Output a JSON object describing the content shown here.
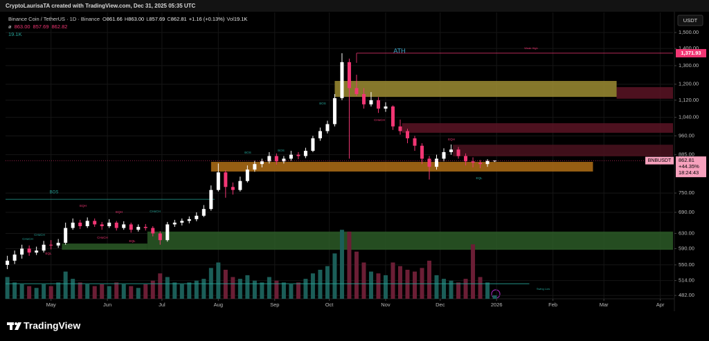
{
  "header": {
    "credit": "CryptoLaurisaTA created with TradingView.com, Dec 31, 2025 05:35 UTC"
  },
  "chart_data": {
    "type": "candlestick",
    "title": "Binance Coin / TetherUS · 1D · Binance",
    "ohlc": [
      [
        "O",
        "861.66"
      ],
      [
        "H",
        "863.00"
      ],
      [
        "L",
        "857.69"
      ],
      [
        "C",
        "862.81"
      ]
    ],
    "change": "+1.16 (+0.13%)",
    "volume_name": "Vol",
    "volume_text": "19.1K",
    "indicator": [
      "ø",
      "863.00",
      "857.69",
      "862.82"
    ],
    "indicator2": "19.1K",
    "currency": "USDT",
    "x": [
      97,
      101,
      105,
      109,
      113,
      117,
      121,
      125,
      129,
      133,
      137,
      141,
      145,
      149,
      153,
      157,
      161,
      165,
      169,
      173,
      177,
      181,
      185,
      189,
      193,
      197,
      201,
      205,
      209,
      213,
      217,
      221,
      225,
      229,
      233,
      237,
      241,
      245,
      249,
      253,
      257,
      261,
      265,
      269,
      273,
      277,
      281,
      285,
      289,
      293,
      297,
      301,
      305,
      309,
      313,
      317,
      321,
      325,
      329,
      333,
      337,
      341,
      345,
      349,
      353,
      357,
      361,
      365
    ],
    "open": [
      550,
      560,
      575,
      590,
      580,
      585,
      600,
      598,
      605,
      645,
      660,
      650,
      665,
      655,
      650,
      660,
      645,
      655,
      640,
      648,
      645,
      630,
      612,
      655,
      660,
      665,
      670,
      680,
      700,
      760,
      820,
      770,
      760,
      790,
      830,
      850,
      860,
      880,
      860,
      870,
      885,
      880,
      900,
      950,
      980,
      1010,
      1130,
      1320,
      1180,
      1150,
      1100,
      1120,
      1080,
      1090,
      1000,
      980,
      950,
      920,
      870,
      840,
      870,
      895,
      905,
      880,
      860,
      855,
      850,
      861.66
    ],
    "high": [
      572,
      585,
      600,
      598,
      595,
      610,
      612,
      615,
      660,
      672,
      668,
      675,
      672,
      662,
      670,
      665,
      664,
      660,
      655,
      656,
      650,
      636,
      662,
      668,
      672,
      678,
      690,
      712,
      775,
      852,
      828,
      785,
      805,
      845,
      862,
      870,
      895,
      890,
      880,
      900,
      895,
      912,
      960,
      995,
      1025,
      1150,
      1371.93,
      1340,
      1250,
      1180,
      1160,
      1135,
      1110,
      1095,
      1030,
      990,
      960,
      930,
      880,
      885,
      910,
      925,
      915,
      890,
      875,
      865,
      868,
      863
    ],
    "low": [
      540,
      552,
      565,
      572,
      574,
      580,
      588,
      592,
      600,
      640,
      642,
      645,
      648,
      640,
      645,
      638,
      640,
      632,
      635,
      638,
      622,
      600,
      608,
      648,
      652,
      658,
      664,
      676,
      695,
      755,
      735,
      745,
      755,
      785,
      822,
      838,
      852,
      848,
      852,
      862,
      868,
      872,
      895,
      940,
      970,
      1000,
      1120,
      870,
      1140,
      1080,
      1090,
      1060,
      1065,
      985,
      965,
      930,
      900,
      850,
      795,
      830,
      860,
      885,
      870,
      845,
      838,
      835,
      840,
      857.69
    ],
    "close": [
      560,
      575,
      590,
      580,
      585,
      600,
      598,
      605,
      645,
      660,
      650,
      665,
      655,
      650,
      660,
      645,
      655,
      640,
      648,
      645,
      630,
      612,
      655,
      660,
      665,
      670,
      680,
      700,
      760,
      820,
      770,
      760,
      790,
      830,
      850,
      860,
      880,
      860,
      870,
      885,
      880,
      900,
      950,
      980,
      1010,
      1130,
      1320,
      1180,
      1150,
      1100,
      1120,
      1080,
      1090,
      1000,
      980,
      950,
      920,
      870,
      840,
      870,
      895,
      905,
      880,
      860,
      855,
      850,
      861.66,
      862.81
    ],
    "volume": [
      120000,
      90000,
      80000,
      70000,
      60000,
      80000,
      70000,
      90000,
      150000,
      110000,
      90000,
      80000,
      70000,
      80000,
      70000,
      90000,
      80000,
      70000,
      60000,
      80000,
      100000,
      140000,
      120000,
      90000,
      80000,
      90000,
      100000,
      110000,
      170000,
      200000,
      160000,
      120000,
      110000,
      130000,
      100000,
      90000,
      120000,
      100000,
      90000,
      80000,
      90000,
      110000,
      140000,
      160000,
      180000,
      250000,
      380000,
      370000,
      260000,
      200000,
      150000,
      140000,
      130000,
      200000,
      180000,
      160000,
      150000,
      170000,
      210000,
      130000,
      110000,
      100000,
      90000,
      110000,
      300000,
      120000,
      90000,
      19100
    ],
    "up_color": "#ffffff",
    "down_color": "#f23674",
    "volume_up_color": "#1b5e58",
    "volume_down_color": "#6b1e35",
    "log_scale": true,
    "grid": true,
    "xlim": [
      96,
      463
    ],
    "xticks": [
      {
        "value": 121,
        "label": "May"
      },
      {
        "value": 152,
        "label": "Jun"
      },
      {
        "value": 182,
        "label": "Jul"
      },
      {
        "value": 213,
        "label": "Aug"
      },
      {
        "value": 244,
        "label": "Sep"
      },
      {
        "value": 274,
        "label": "Oct"
      },
      {
        "value": 305,
        "label": "Nov"
      },
      {
        "value": 335,
        "label": "Dec"
      },
      {
        "value": 366,
        "label": "2026"
      },
      {
        "value": 397,
        "label": "Feb"
      },
      {
        "value": 425,
        "label": "Mar"
      },
      {
        "value": 456,
        "label": "Apr"
      }
    ],
    "ylim": [
      475,
      1541
    ],
    "yticks": [
      {
        "value": 1500,
        "label": "1,500.00"
      },
      {
        "value": 1400,
        "label": "1,400.00"
      },
      {
        "value": 1300,
        "label": "1,300.00"
      },
      {
        "value": 1200,
        "label": "1,200.00"
      },
      {
        "value": 1120,
        "label": "1,120.00"
      },
      {
        "value": 1040,
        "label": "1,040.00"
      },
      {
        "value": 960,
        "label": "960.00"
      },
      {
        "value": 885,
        "label": "885.00"
      },
      {
        "value": 750,
        "label": "750.00"
      },
      {
        "value": 690,
        "label": "690.00"
      },
      {
        "value": 630,
        "label": "630.00"
      },
      {
        "value": 590,
        "label": "590.00"
      },
      {
        "value": 550,
        "label": "550.00"
      },
      {
        "value": 514,
        "label": "514.00"
      },
      {
        "value": 482,
        "label": "482.00"
      }
    ],
    "volume_ylim": [
      0,
      400000
    ],
    "price_tag": {
      "symbol": "BNBUSDT",
      "price": "862.81",
      "change": "+44.35%",
      "countdown": "18:24:43"
    },
    "ath": {
      "text": "ATH",
      "value": 1371.93,
      "label": "1,371.93",
      "from": 289,
      "note": "Weak High",
      "color": "#f23674"
    },
    "levels": [
      {
        "name": "BOS",
        "value": 730,
        "from": 96,
        "to": 211,
        "color": "#26a69a"
      },
      {
        "name": "Swing Low",
        "value": 507,
        "from": 96,
        "to": 384,
        "color": "#26a69a"
      }
    ],
    "zones": [
      {
        "low": 1127,
        "high": 1185,
        "from": 432,
        "to": 463,
        "color": "#5a1424"
      },
      {
        "low": 1136,
        "high": 1217,
        "from": 277,
        "to": 432,
        "color": "#9c8c32"
      },
      {
        "low": 973,
        "high": 1014,
        "from": 314,
        "to": 463,
        "color": "#5a1424"
      },
      {
        "low": 879,
        "high": 924,
        "from": 342,
        "to": 463,
        "color": "#4a121e"
      },
      {
        "low": 823,
        "high": 858,
        "from": 209,
        "to": 419,
        "color": "#b06f16"
      },
      {
        "low": 587,
        "high": 635,
        "from": 174,
        "to": 463,
        "color": "#2c5a27"
      },
      {
        "low": 587,
        "high": 603,
        "from": 127,
        "to": 174,
        "color": "#2c5a27"
      }
    ],
    "annotations": [
      {
        "text": "CHoCH",
        "color": "#26a69a"
      },
      {
        "text": "CHoCH",
        "color": "#26a69a"
      },
      {
        "text": "EQL",
        "color": "#f23674"
      },
      {
        "text": "EQH",
        "color": "#f23674"
      },
      {
        "text": "CHoCH",
        "color": "#f23674"
      },
      {
        "text": "EQH",
        "color": "#f23674"
      },
      {
        "text": "EQL",
        "color": "#f23674"
      },
      {
        "text": "CHoCH",
        "color": "#26a69a"
      },
      {
        "text": "BOS",
        "color": "#26a69a"
      },
      {
        "text": "BOS",
        "color": "#26a69a"
      },
      {
        "text": "BOS",
        "color": "#26a69a"
      },
      {
        "text": "CHoCH",
        "color": "#f23674"
      },
      {
        "text": "EQH",
        "color": "#f23674"
      },
      {
        "text": "EQL",
        "color": "#26a69a"
      }
    ]
  },
  "footer": {
    "brand": "TradingView"
  }
}
